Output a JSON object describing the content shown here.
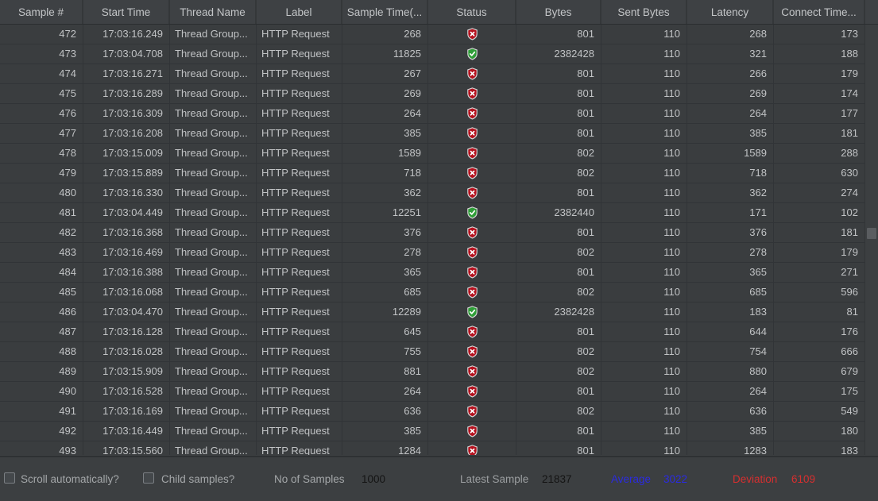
{
  "table": {
    "columns": [
      {
        "id": "sample-number",
        "label": "Sample #"
      },
      {
        "id": "start-time",
        "label": "Start Time"
      },
      {
        "id": "thread-name",
        "label": "Thread Name"
      },
      {
        "id": "label",
        "label": "Label"
      },
      {
        "id": "sample-time",
        "label": "Sample Time(..."
      },
      {
        "id": "status",
        "label": "Status"
      },
      {
        "id": "bytes",
        "label": "Bytes"
      },
      {
        "id": "sent-bytes",
        "label": "Sent Bytes"
      },
      {
        "id": "latency",
        "label": "Latency"
      },
      {
        "id": "connect-time",
        "label": "Connect Time..."
      }
    ],
    "rows": [
      [
        "472",
        "17:03:16.249",
        "Thread Group...",
        "HTTP Request",
        "268",
        "fail",
        "801",
        "110",
        "268",
        "173"
      ],
      [
        "473",
        "17:03:04.708",
        "Thread Group...",
        "HTTP Request",
        "11825",
        "pass",
        "2382428",
        "110",
        "321",
        "188"
      ],
      [
        "474",
        "17:03:16.271",
        "Thread Group...",
        "HTTP Request",
        "267",
        "fail",
        "801",
        "110",
        "266",
        "179"
      ],
      [
        "475",
        "17:03:16.289",
        "Thread Group...",
        "HTTP Request",
        "269",
        "fail",
        "801",
        "110",
        "269",
        "174"
      ],
      [
        "476",
        "17:03:16.309",
        "Thread Group...",
        "HTTP Request",
        "264",
        "fail",
        "801",
        "110",
        "264",
        "177"
      ],
      [
        "477",
        "17:03:16.208",
        "Thread Group...",
        "HTTP Request",
        "385",
        "fail",
        "801",
        "110",
        "385",
        "181"
      ],
      [
        "478",
        "17:03:15.009",
        "Thread Group...",
        "HTTP Request",
        "1589",
        "fail",
        "802",
        "110",
        "1589",
        "288"
      ],
      [
        "479",
        "17:03:15.889",
        "Thread Group...",
        "HTTP Request",
        "718",
        "fail",
        "802",
        "110",
        "718",
        "630"
      ],
      [
        "480",
        "17:03:16.330",
        "Thread Group...",
        "HTTP Request",
        "362",
        "fail",
        "801",
        "110",
        "362",
        "274"
      ],
      [
        "481",
        "17:03:04.449",
        "Thread Group...",
        "HTTP Request",
        "12251",
        "pass",
        "2382440",
        "110",
        "171",
        "102"
      ],
      [
        "482",
        "17:03:16.368",
        "Thread Group...",
        "HTTP Request",
        "376",
        "fail",
        "801",
        "110",
        "376",
        "181"
      ],
      [
        "483",
        "17:03:16.469",
        "Thread Group...",
        "HTTP Request",
        "278",
        "fail",
        "802",
        "110",
        "278",
        "179"
      ],
      [
        "484",
        "17:03:16.388",
        "Thread Group...",
        "HTTP Request",
        "365",
        "fail",
        "801",
        "110",
        "365",
        "271"
      ],
      [
        "485",
        "17:03:16.068",
        "Thread Group...",
        "HTTP Request",
        "685",
        "fail",
        "802",
        "110",
        "685",
        "596"
      ],
      [
        "486",
        "17:03:04.470",
        "Thread Group...",
        "HTTP Request",
        "12289",
        "pass",
        "2382428",
        "110",
        "183",
        "81"
      ],
      [
        "487",
        "17:03:16.128",
        "Thread Group...",
        "HTTP Request",
        "645",
        "fail",
        "801",
        "110",
        "644",
        "176"
      ],
      [
        "488",
        "17:03:16.028",
        "Thread Group...",
        "HTTP Request",
        "755",
        "fail",
        "802",
        "110",
        "754",
        "666"
      ],
      [
        "489",
        "17:03:15.909",
        "Thread Group...",
        "HTTP Request",
        "881",
        "fail",
        "802",
        "110",
        "880",
        "679"
      ],
      [
        "490",
        "17:03:16.528",
        "Thread Group...",
        "HTTP Request",
        "264",
        "fail",
        "801",
        "110",
        "264",
        "175"
      ],
      [
        "491",
        "17:03:16.169",
        "Thread Group...",
        "HTTP Request",
        "636",
        "fail",
        "802",
        "110",
        "636",
        "549"
      ],
      [
        "492",
        "17:03:16.449",
        "Thread Group...",
        "HTTP Request",
        "385",
        "fail",
        "801",
        "110",
        "385",
        "180"
      ],
      [
        "493",
        "17:03:15.560",
        "Thread Group...",
        "HTTP Request",
        "1284",
        "fail",
        "801",
        "110",
        "1283",
        "183"
      ]
    ],
    "status_icons": {
      "pass": "shield-check-icon",
      "fail": "shield-x-icon"
    }
  },
  "footer": {
    "scroll_automatically_label": "Scroll automatically?",
    "scroll_automatically_checked": false,
    "child_samples_label": "Child samples?",
    "child_samples_checked": false,
    "no_of_samples_label": "No of Samples",
    "no_of_samples_value": "1000",
    "latest_sample_label": "Latest Sample",
    "latest_sample_value": "21837",
    "average_label": "Average",
    "average_value": "3022",
    "deviation_label": "Deviation",
    "deviation_value": "6109"
  },
  "colors": {
    "average_blue": "#2b2be0",
    "deviation_red": "#d62f2f",
    "status_pass_green": "#2f9e38",
    "status_fail_red": "#b5121f",
    "background": "#3c3f41"
  }
}
